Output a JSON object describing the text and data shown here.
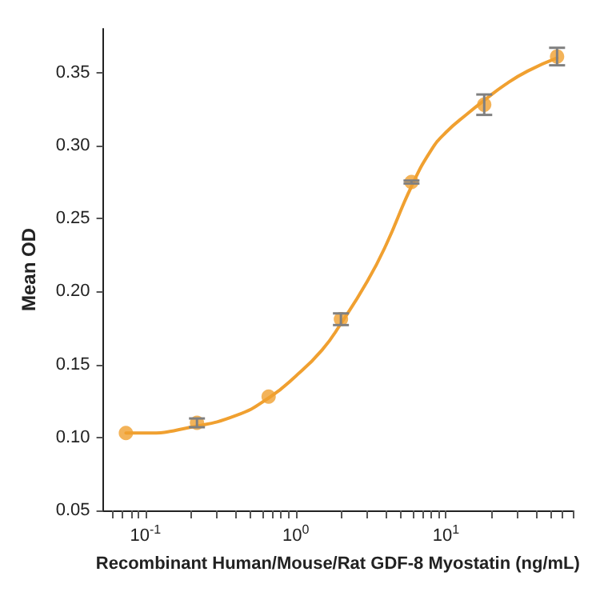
{
  "chart_data": {
    "type": "scatter",
    "xlabel": "Recombinant Human/Mouse/Rat GDF-8 Myostatin (ng/mL)",
    "ylabel": "Mean OD",
    "log": "x",
    "xlim": [
      0.052,
      70
    ],
    "ylim": [
      0.05,
      0.38
    ],
    "xticks": [
      {
        "value": 0.06,
        "label": null
      },
      {
        "value": 0.07,
        "label": null
      },
      {
        "value": 0.08,
        "label": null
      },
      {
        "value": 0.09,
        "label": null
      },
      {
        "value": 0.1,
        "label": "10$^{-1}$"
      },
      {
        "value": 0.2,
        "label": null
      },
      {
        "value": 0.3,
        "label": null
      },
      {
        "value": 0.4,
        "label": null
      },
      {
        "value": 0.5,
        "label": null
      },
      {
        "value": 0.6,
        "label": null
      },
      {
        "value": 0.7,
        "label": null
      },
      {
        "value": 0.8,
        "label": null
      },
      {
        "value": 0.9,
        "label": null
      },
      {
        "value": 1,
        "label": "10$^{0}$"
      },
      {
        "value": 2,
        "label": null
      },
      {
        "value": 3,
        "label": null
      },
      {
        "value": 4,
        "label": null
      },
      {
        "value": 5,
        "label": null
      },
      {
        "value": 6,
        "label": null
      },
      {
        "value": 7,
        "label": null
      },
      {
        "value": 8,
        "label": null
      },
      {
        "value": 9,
        "label": null
      },
      {
        "value": 10,
        "label": "10$^{1}$"
      },
      {
        "value": 20,
        "label": null
      },
      {
        "value": 30,
        "label": null
      },
      {
        "value": 40,
        "label": null
      },
      {
        "value": 50,
        "label": null
      },
      {
        "value": 60,
        "label": null
      },
      {
        "value": 70,
        "label": null
      }
    ],
    "yticks": [
      {
        "value": 0.05,
        "label": "0.05"
      },
      {
        "value": 0.1,
        "label": "0.10"
      },
      {
        "value": 0.15,
        "label": "0.15"
      },
      {
        "value": 0.2,
        "label": "0.20"
      },
      {
        "value": 0.25,
        "label": "0.25"
      },
      {
        "value": 0.3,
        "label": "0.30"
      },
      {
        "value": 0.35,
        "label": "0.35"
      }
    ],
    "grid": false,
    "series": [
      {
        "color": "#f0a030",
        "marker": "circle",
        "x": [
          0.074,
          0.22,
          0.66,
          2.0,
          5.9,
          18,
          55
        ],
        "values": [
          0.103,
          0.11,
          0.128,
          0.181,
          0.275,
          0.328,
          0.361
        ],
        "errors": [
          null,
          0.003,
          null,
          0.004,
          0.001,
          0.007,
          0.006
        ]
      },
      {
        "type": "line",
        "color": "#f0a030",
        "marker": "none",
        "line_style": "solid",
        "x": [
          0.074,
          0.1,
          0.2,
          0.4,
          0.66,
          1,
          1.5,
          2,
          3,
          4,
          5.9,
          8,
          10,
          14,
          18,
          25,
          35,
          55
        ],
        "values": [
          0.103,
          0.103,
          0.107,
          0.115,
          0.127,
          0.142,
          0.16,
          0.178,
          0.207,
          0.232,
          0.272,
          0.297,
          0.309,
          0.322,
          0.331,
          0.342,
          0.351,
          0.36
        ]
      }
    ]
  }
}
